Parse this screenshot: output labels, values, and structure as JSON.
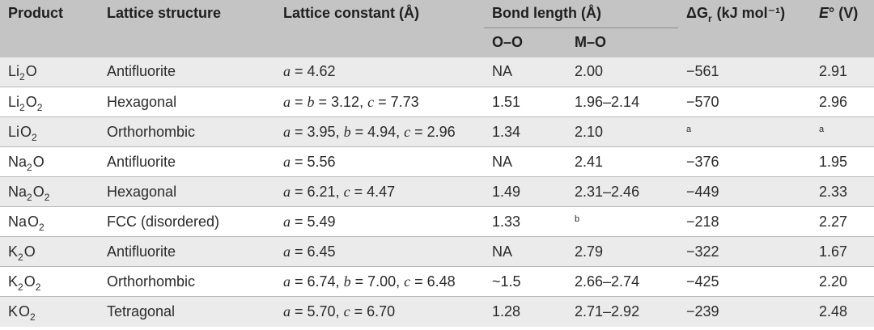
{
  "header": {
    "product": "Product",
    "lattice_structure": "Lattice structure",
    "lattice_constant": "Lattice constant (Å)",
    "bond_length": "Bond length (Å)",
    "oo": "O–O",
    "mo": "M–O",
    "delta_g": "ΔG",
    "delta_g_sub": "r",
    "delta_g_unit": " (kJ mol⁻¹)",
    "e_symbol": "E",
    "e_unit": "° (V)"
  },
  "rows": [
    {
      "el": "Li",
      "n1": "2",
      "o": "O",
      "n2": "",
      "structure": "Antifluorite",
      "constant": "a = 4.62",
      "oo": "NA",
      "mo": "2.00",
      "dg": "−561",
      "e": "2.91"
    },
    {
      "el": "Li",
      "n1": "2",
      "o": "O",
      "n2": "2",
      "structure": "Hexagonal",
      "constant": "a = b = 3.12, c = 7.73",
      "oo": "1.51",
      "mo": "1.96–2.14",
      "dg": "−570",
      "e": "2.96"
    },
    {
      "el": "Li",
      "n1": "",
      "o": "O",
      "n2": "2",
      "structure": "Orthorhombic",
      "constant": "a = 3.95, b = 4.94, c = 2.96",
      "oo": "1.34",
      "mo": "2.10",
      "dg_note": "a",
      "e_note": "a"
    },
    {
      "el": "Na",
      "n1": "2",
      "o": "O",
      "n2": "",
      "structure": "Antifluorite",
      "constant": "a = 5.56",
      "oo": "NA",
      "mo": "2.41",
      "dg": "−376",
      "e": "1.95"
    },
    {
      "el": "Na",
      "n1": "2",
      "o": "O",
      "n2": "2",
      "structure": "Hexagonal",
      "constant": "a = 6.21, c = 4.47",
      "oo": "1.49",
      "mo": "2.31–2.46",
      "dg": "−449",
      "e": "2.33"
    },
    {
      "el": "Na",
      "n1": "",
      "o": "O",
      "n2": "2",
      "structure": "FCC (disordered)",
      "constant": "a = 5.49",
      "oo": "1.33",
      "mo_note": "b",
      "dg": "−218",
      "e": "2.27"
    },
    {
      "el": "K",
      "n1": "2",
      "o": "O",
      "n2": "",
      "structure": "Antifluorite",
      "constant": "a = 6.45",
      "oo": "NA",
      "mo": "2.79",
      "dg": "−322",
      "e": "1.67"
    },
    {
      "el": "K",
      "n1": "2",
      "o": "O",
      "n2": "2",
      "structure": "Orthorhombic",
      "constant": "a = 6.74, b = 7.00, c = 6.48",
      "oo": "~1.5",
      "mo": "2.66–2.74",
      "dg": "−425",
      "e": "2.20"
    },
    {
      "el": "K",
      "n1": "",
      "o": "O",
      "n2": "2",
      "structure": "Tetragonal",
      "constant": "a = 5.70, c = 6.70",
      "oo": "1.28",
      "mo": "2.71–2.92",
      "dg": "−239",
      "e": "2.48"
    }
  ]
}
